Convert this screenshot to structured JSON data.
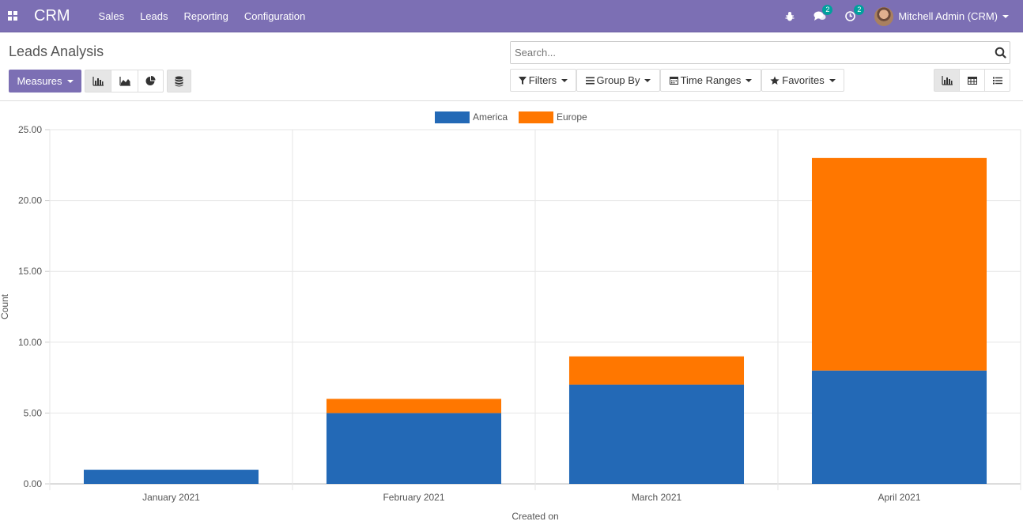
{
  "navbar": {
    "brand": "CRM",
    "menu": [
      "Sales",
      "Leads",
      "Reporting",
      "Configuration"
    ],
    "messages_badge": "2",
    "activities_badge": "2",
    "user": "Mitchell Admin (CRM)"
  },
  "control": {
    "title": "Leads Analysis",
    "measures_label": "Measures",
    "search_placeholder": "Search...",
    "filters_label": "Filters",
    "groupby_label": "Group By",
    "timeranges_label": "Time Ranges",
    "favorites_label": "Favorites"
  },
  "colors": {
    "navbar": "#7c6fb4",
    "america": "#2369b6",
    "europe": "#ff7700"
  },
  "chart_data": {
    "type": "bar",
    "stacked": true,
    "categories": [
      "January 2021",
      "February 2021",
      "March 2021",
      "April 2021"
    ],
    "series": [
      {
        "name": "America",
        "values": [
          1,
          5,
          7,
          8
        ]
      },
      {
        "name": "Europe",
        "values": [
          0,
          1,
          2,
          15
        ]
      }
    ],
    "xlabel": "Created on",
    "ylabel": "Count",
    "ylim": [
      0,
      25
    ],
    "yticks": [
      "0.00",
      "5.00",
      "10.00",
      "15.00",
      "20.00",
      "25.00"
    ],
    "grid": true,
    "legend": "top-center"
  }
}
